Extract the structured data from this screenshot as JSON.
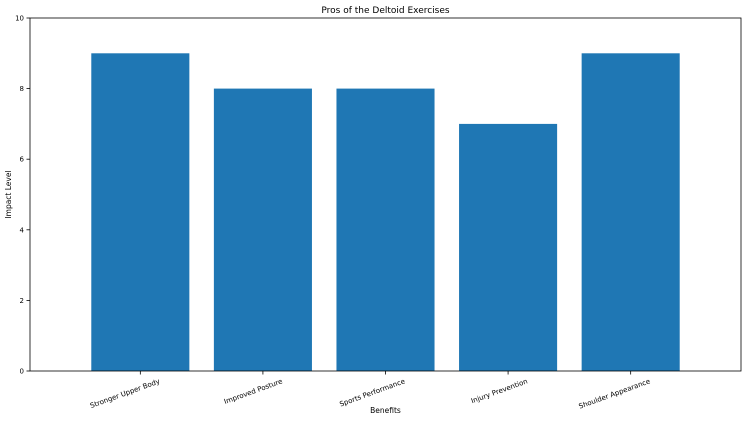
{
  "chart_data": {
    "type": "bar",
    "title": "Pros of the Deltoid Exercises",
    "xlabel": "Benefits",
    "ylabel": "Impact Level",
    "categories": [
      "Stronger Upper Body",
      "Improved Posture",
      "Sports Performance",
      "Injury Prevention",
      "Shoulder Appearance"
    ],
    "values": [
      9,
      8,
      8,
      7,
      9
    ],
    "ylim": [
      0,
      10
    ],
    "yticks": [
      0,
      2,
      4,
      6,
      8,
      10
    ],
    "bar_color": "#1f77b4",
    "grid": false,
    "legend": "none"
  }
}
